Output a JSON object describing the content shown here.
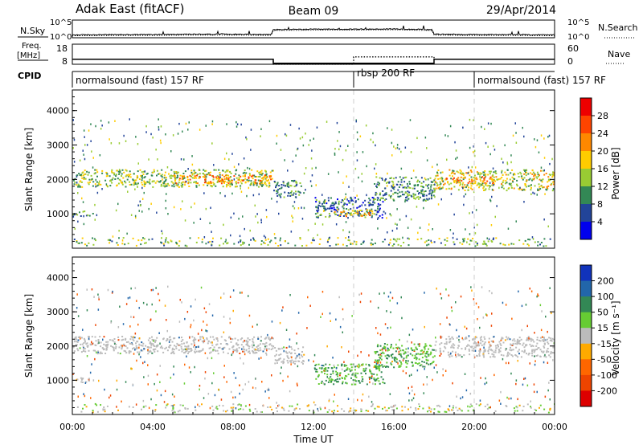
{
  "header": {
    "site": "Adak East (fitACF)",
    "beam": "Beam 09",
    "date": "29/Apr/2014"
  },
  "noise_panel": {
    "left_label": "N.Sky",
    "right_label": "N.Search",
    "left_ticks": [
      "10^5",
      "10^0"
    ],
    "right_ticks": [
      "10^5",
      "10^0"
    ]
  },
  "freq_panel": {
    "left_label_1": "Freq.",
    "left_label_2": "[MHz]",
    "right_label": "Nave",
    "left_ticks": [
      "18",
      "8"
    ],
    "right_ticks": [
      "60",
      "0"
    ]
  },
  "cpid": {
    "label": "CPID",
    "segments": [
      {
        "start": 0,
        "end": 14,
        "text": "normalsound (fast) 157 RF"
      },
      {
        "start": 14,
        "end": 20,
        "text": "rbsp 200 RF"
      },
      {
        "start": 20,
        "end": 24,
        "text": "normalsound (fast) 157 RF"
      }
    ]
  },
  "power_colorbar": {
    "title": "Power [dB]",
    "ticks": [
      "28",
      "24",
      "20",
      "16",
      "12",
      "8",
      "4"
    ],
    "colors": [
      "#ee0000",
      "#ff4400",
      "#ff8800",
      "#ffcc00",
      "#99cc33",
      "#338855",
      "#224499",
      "#0000ee"
    ]
  },
  "velocity_colorbar": {
    "title": "Velocity [m s⁻¹]",
    "ticks": [
      "200",
      "100",
      "50",
      "15",
      "-15",
      "-50",
      "-100",
      "-200"
    ],
    "colors": [
      "#1133bb",
      "#2266aa",
      "#338855",
      "#66cc33",
      "#bbbbbb",
      "#ffaa00",
      "#ff6600",
      "#ee4400",
      "#dd0000"
    ]
  },
  "chart_data": [
    {
      "type": "line",
      "title": "N.Sky",
      "x_unit": "hours UT",
      "x": [
        0,
        2,
        4,
        6,
        8,
        9.9,
        10,
        12,
        14,
        16,
        17.9,
        18,
        20,
        22,
        24
      ],
      "y_log": [
        0.8,
        0.9,
        0.9,
        1.0,
        1.0,
        0.9,
        2.3,
        2.4,
        2.4,
        2.5,
        2.3,
        1.0,
        0.9,
        0.9,
        0.8
      ],
      "ylim": [
        0,
        5
      ]
    },
    {
      "type": "line",
      "title": "Freq.",
      "ylabel": "[MHz]",
      "series": [
        {
          "name": "Freq.",
          "x": [
            0,
            10,
            10,
            18,
            18,
            24
          ],
          "y": [
            10.5,
            10.5,
            8.5,
            8.5,
            10.5,
            10.5
          ]
        },
        {
          "name": "Nave",
          "x": [
            0,
            10,
            10,
            14,
            14,
            18,
            18,
            24
          ],
          "y": [
            15,
            15,
            0,
            0,
            22,
            22,
            15,
            15
          ]
        }
      ],
      "ylim": [
        8,
        18
      ],
      "y2lim": [
        0,
        60
      ]
    },
    {
      "type": "heatmap",
      "title": "Power",
      "xlabel": "",
      "ylabel": "Slant Range [km]",
      "xlim": [
        0,
        24
      ],
      "ylim": [
        0,
        4600
      ],
      "yticks": [
        1000,
        2000,
        3000,
        4000
      ],
      "colorbar": "Power [dB]",
      "regions": [
        {
          "x": [
            0,
            10
          ],
          "y": [
            1800,
            2300
          ],
          "value": 14
        },
        {
          "x": [
            5,
            10
          ],
          "y": [
            1900,
            2150
          ],
          "value": 22
        },
        {
          "x": [
            10,
            11.5
          ],
          "y": [
            1500,
            2000
          ],
          "value": 10
        },
        {
          "x": [
            12,
            15.5
          ],
          "y": [
            900,
            1500
          ],
          "value": 8
        },
        {
          "x": [
            13,
            15
          ],
          "y": [
            950,
            1150
          ],
          "value": 20
        },
        {
          "x": [
            15,
            18
          ],
          "y": [
            1400,
            2100
          ],
          "value": 10
        },
        {
          "x": [
            18,
            24
          ],
          "y": [
            1700,
            2300
          ],
          "value": 16
        },
        {
          "x": [
            18.5,
            21
          ],
          "y": [
            1900,
            2100
          ],
          "value": 22
        },
        {
          "x": [
            0,
            1
          ],
          "y": [
            950,
            1100
          ],
          "value": 10
        }
      ]
    },
    {
      "type": "heatmap",
      "title": "Velocity",
      "xlabel": "Time UT",
      "ylabel": "Slant Range [km]",
      "xlim": [
        0,
        24
      ],
      "ylim": [
        0,
        4600
      ],
      "xticks": [
        "00:00",
        "04:00",
        "08:00",
        "12:00",
        "16:00",
        "20:00",
        "00:00"
      ],
      "yticks": [
        1000,
        2000,
        3000,
        4000
      ],
      "colorbar": "Velocity [m s⁻¹]",
      "regions": [
        {
          "x": [
            0,
            10
          ],
          "y": [
            1800,
            2300
          ],
          "value": 0
        },
        {
          "x": [
            10,
            11.5
          ],
          "y": [
            1500,
            2000
          ],
          "value": 0
        },
        {
          "x": [
            12,
            15.5
          ],
          "y": [
            900,
            1500
          ],
          "value": 30
        },
        {
          "x": [
            15,
            18
          ],
          "y": [
            1400,
            2100
          ],
          "value": 30
        },
        {
          "x": [
            18,
            24
          ],
          "y": [
            1700,
            2300
          ],
          "value": 0
        },
        {
          "x": [
            0,
            1
          ],
          "y": [
            950,
            1100
          ],
          "value": 0
        }
      ]
    }
  ]
}
